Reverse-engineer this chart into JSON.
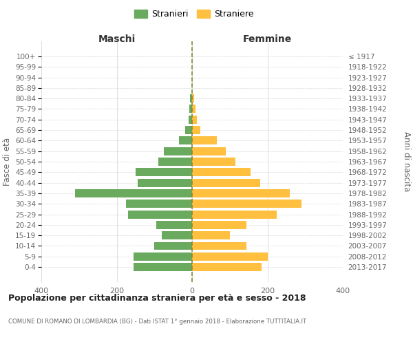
{
  "age_groups": [
    "100+",
    "95-99",
    "90-94",
    "85-89",
    "80-84",
    "75-79",
    "70-74",
    "65-69",
    "60-64",
    "55-59",
    "50-54",
    "45-49",
    "40-44",
    "35-39",
    "30-34",
    "25-29",
    "20-24",
    "15-19",
    "10-14",
    "5-9",
    "0-4"
  ],
  "birth_years": [
    "≤ 1917",
    "1918-1922",
    "1923-1927",
    "1928-1932",
    "1933-1937",
    "1938-1942",
    "1943-1947",
    "1948-1952",
    "1953-1957",
    "1958-1962",
    "1963-1967",
    "1968-1972",
    "1973-1977",
    "1978-1982",
    "1983-1987",
    "1988-1992",
    "1993-1997",
    "1998-2002",
    "2003-2007",
    "2008-2012",
    "2013-2017"
  ],
  "maschi": [
    0,
    0,
    0,
    0,
    5,
    8,
    10,
    18,
    35,
    75,
    90,
    150,
    145,
    310,
    175,
    170,
    95,
    80,
    100,
    155,
    155
  ],
  "femmine": [
    0,
    0,
    0,
    0,
    5,
    10,
    12,
    22,
    65,
    90,
    115,
    155,
    180,
    260,
    290,
    225,
    145,
    100,
    145,
    200,
    185
  ],
  "color_maschi": "#6aaa5e",
  "color_femmine": "#ffbf3f",
  "title": "Popolazione per cittadinanza straniera per età e sesso - 2018",
  "subtitle": "COMUNE DI ROMANO DI LOMBARDIA (BG) - Dati ISTAT 1° gennaio 2018 - Elaborazione TUTTITALIA.IT",
  "header_left": "Maschi",
  "header_right": "Femmine",
  "ylabel_left": "Fasce di età",
  "ylabel_right": "Anni di nascita",
  "legend_stranieri": "Stranieri",
  "legend_straniere": "Straniere",
  "xlim": 400,
  "background_color": "#ffffff",
  "grid_color": "#d8d8d8",
  "dashed_line_color_1": "#888833",
  "dashed_line_color_2": "#bbbb55"
}
